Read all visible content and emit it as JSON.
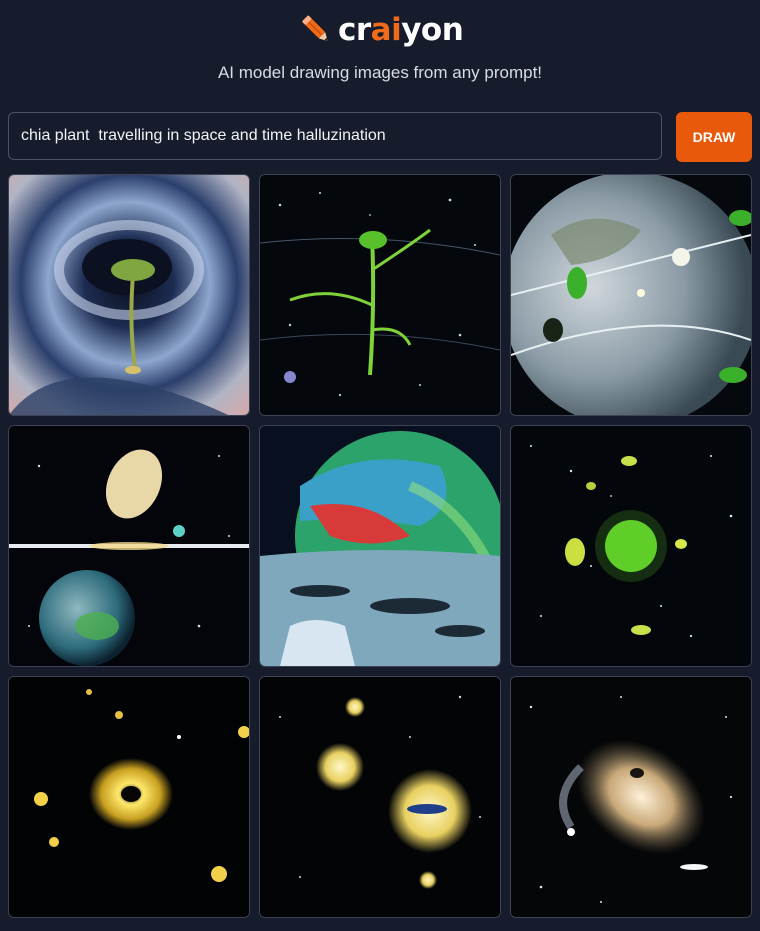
{
  "header": {
    "logo_pre": "cr",
    "logo_accent": "ai",
    "logo_post": "yon",
    "tagline": "AI model drawing images from any prompt!"
  },
  "prompt": {
    "value": "chia plant  travelling in space and time halluzination",
    "draw_label": "DRAW"
  },
  "colors": {
    "background": "#161c2b",
    "accent": "#e8590c",
    "border": "#3b4354"
  },
  "results": {
    "count": 9,
    "images": [
      {
        "subject": "swirl-vortex-sprout"
      },
      {
        "subject": "green-sprout-starfield"
      },
      {
        "subject": "globe-with-leaves"
      },
      {
        "subject": "comet-and-earth"
      },
      {
        "subject": "earth-over-moon"
      },
      {
        "subject": "green-cluster-starfield"
      },
      {
        "subject": "glowing-ring-galaxy"
      },
      {
        "subject": "yellow-glow-orbs"
      },
      {
        "subject": "spiral-galaxy"
      }
    ]
  }
}
